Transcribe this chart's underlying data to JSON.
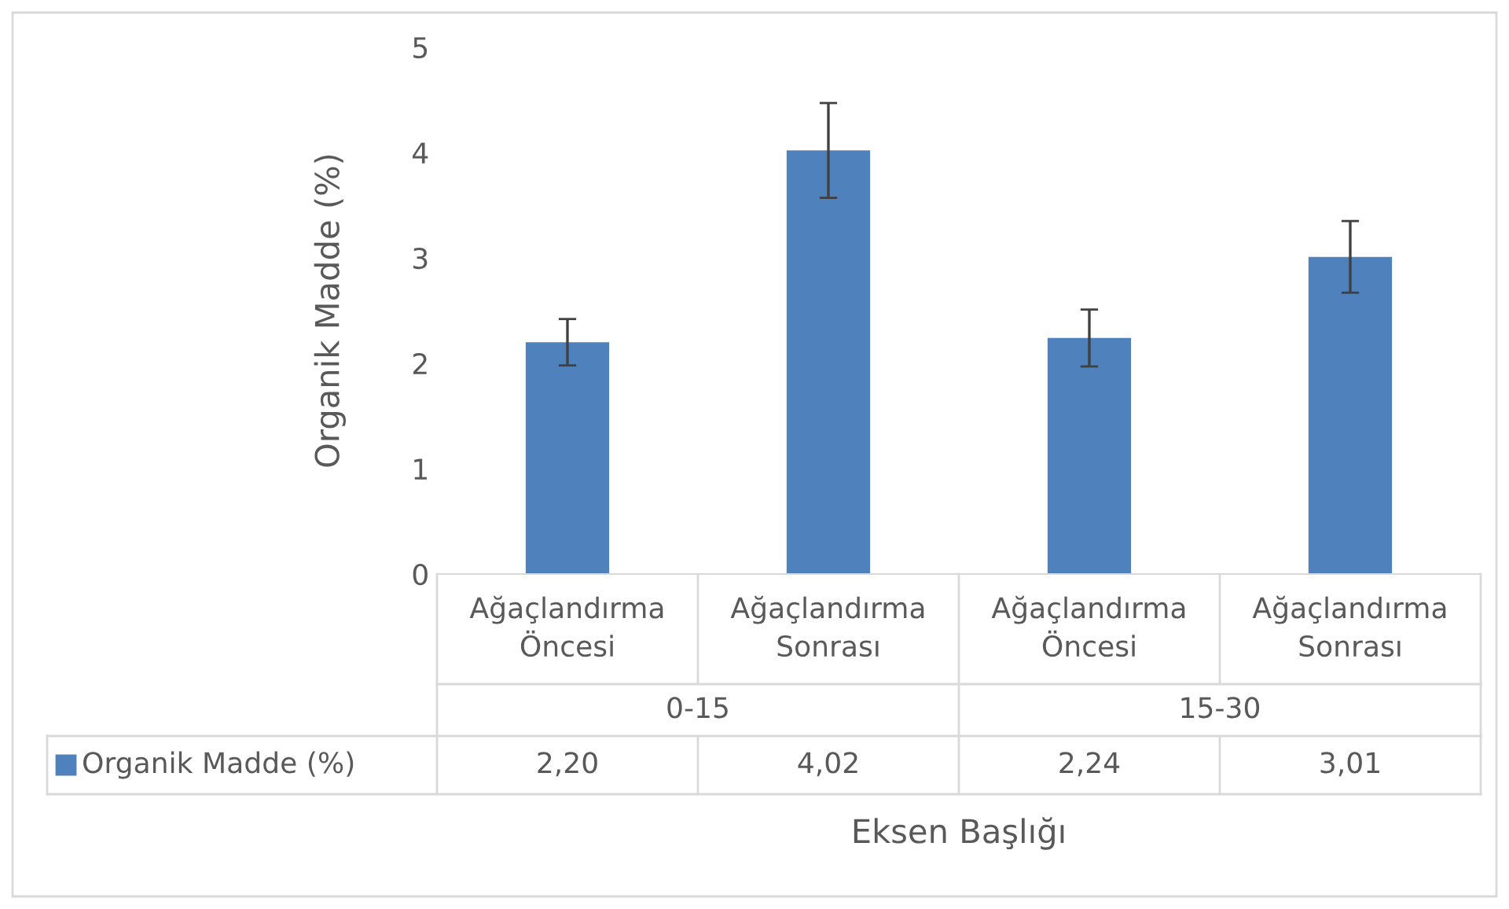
{
  "chart_data": {
    "type": "bar",
    "ylabel": "Organik Madde (%)",
    "xlabel": "Eksen Başlığı",
    "categories": [
      "Ağaçlandırma Öncesi",
      "Ağaçlandırma Sonrası",
      "Ağaçlandırma Öncesi",
      "Ağaçlandırma Sonrası"
    ],
    "series": [
      {
        "name": "Organik Madde (%)",
        "color": "#4f81bd",
        "values": [
          2.2,
          4.02,
          2.24,
          3.01
        ],
        "errors": [
          0.22,
          0.45,
          0.27,
          0.34
        ],
        "value_labels": [
          "2,20",
          "4,02",
          "2,24",
          "3,01"
        ]
      }
    ],
    "annotations": [
      "0-15",
      "15-30"
    ],
    "ylim": [
      0,
      5
    ],
    "yticks": [
      0,
      1,
      2,
      3,
      4,
      5
    ],
    "grid": false
  }
}
